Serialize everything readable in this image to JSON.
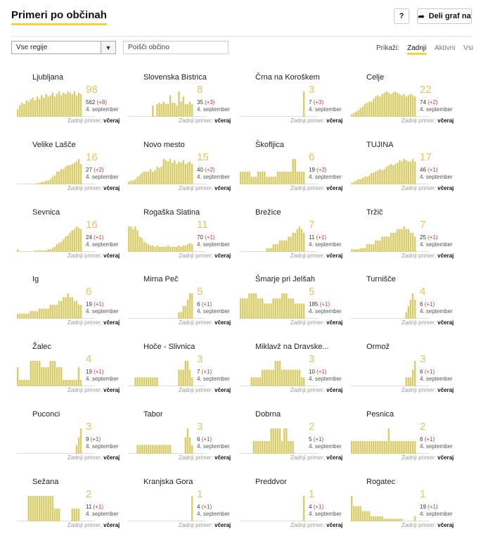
{
  "header": {
    "title": "Primeri po občinah",
    "help_label": "?",
    "share_label": "Deli graf na"
  },
  "filters": {
    "region_select": "Vse regije",
    "search_placeholder": "Poišči občino",
    "show_label": "Prikaži:",
    "options": [
      "Zadnji",
      "Aktivni",
      "Vsi"
    ],
    "selected": "Zadnji"
  },
  "colors": {
    "accent": "#f2d240",
    "bar": "#d9cc6a",
    "value": "#e2c55c",
    "delta": "#c0392b"
  },
  "municipalities": [
    {
      "name": "Ljubljana",
      "value": "98",
      "total": "562",
      "delta": "(+8)",
      "date": "4. september",
      "last_label": "Zadnji primer:",
      "last_value": "včeraj",
      "bars": [
        0.3,
        0.45,
        0.55,
        0.5,
        0.65,
        0.6,
        0.7,
        0.75,
        0.65,
        0.8,
        0.7,
        0.85,
        0.75,
        0.9,
        0.8,
        0.85,
        0.95,
        0.8,
        0.9,
        1.0,
        0.85,
        0.95,
        0.9,
        1.0,
        0.95,
        0.9,
        1.0,
        0.85,
        0.95,
        0.9
      ]
    },
    {
      "name": "Slovenska Bistrica",
      "value": "8",
      "total": "35",
      "delta": "(+3)",
      "date": "4. september",
      "last_label": "Zadnji primer:",
      "last_value": "včeraj",
      "bars": [
        0,
        0,
        0,
        0,
        0,
        0,
        0,
        0,
        0,
        0,
        0,
        0.45,
        0,
        0.5,
        0.55,
        0.5,
        0.6,
        0.5,
        0.5,
        0.85,
        0.55,
        0.55,
        0.45,
        1.0,
        0.6,
        0.8,
        0.5,
        0.5,
        0.6,
        0.5
      ]
    },
    {
      "name": "Črna na Koroškem",
      "value": "3",
      "total": "7",
      "delta": "(+3)",
      "date": "4. september",
      "last_label": "Zadnji primer:",
      "last_value": "včeraj",
      "bars": [
        0,
        0,
        0,
        0,
        0,
        0,
        0,
        0,
        0,
        0,
        0,
        0,
        0,
        0,
        0,
        0,
        0,
        0,
        0,
        0,
        0,
        0,
        0,
        0,
        0,
        0,
        0,
        0,
        0,
        1.0
      ]
    },
    {
      "name": "Celje",
      "value": "22",
      "total": "74",
      "delta": "(+2)",
      "date": "4. september",
      "last_label": "Zadnji primer:",
      "last_value": "včeraj",
      "bars": [
        0.1,
        0.15,
        0.2,
        0.25,
        0.35,
        0.4,
        0.5,
        0.55,
        0.6,
        0.6,
        0.7,
        0.8,
        0.85,
        0.8,
        0.9,
        0.95,
        1.0,
        0.95,
        0.9,
        0.95,
        1.0,
        0.95,
        0.9,
        0.85,
        0.9,
        0.8,
        0.85,
        0.9,
        0.85,
        0.8
      ]
    },
    {
      "name": "Velike Lašče",
      "value": "16",
      "total": "27",
      "delta": "(+2)",
      "date": "4. september",
      "last_label": "Zadnji primer:",
      "last_value": "včeraj",
      "bars": [
        0,
        0,
        0,
        0,
        0,
        0,
        0,
        0,
        0,
        0.05,
        0.05,
        0.1,
        0.1,
        0.15,
        0.15,
        0.2,
        0.3,
        0.35,
        0.5,
        0.5,
        0.6,
        0.6,
        0.7,
        0.75,
        0.75,
        0.8,
        0.85,
        0.9,
        1.0,
        0.8
      ]
    },
    {
      "name": "Novo mesto",
      "value": "15",
      "total": "40",
      "delta": "(+2)",
      "date": "4. september",
      "last_label": "Zadnji primer:",
      "last_value": "včeraj",
      "bars": [
        0.1,
        0.15,
        0.15,
        0.2,
        0.3,
        0.35,
        0.45,
        0.5,
        0.5,
        0.5,
        0.6,
        0.5,
        0.55,
        0.7,
        0.65,
        0.7,
        1.0,
        0.95,
        0.9,
        1.0,
        0.85,
        0.95,
        0.8,
        0.9,
        0.85,
        0.95,
        0.8,
        0.85,
        0.9,
        0.8
      ]
    },
    {
      "name": "Škofljica",
      "value": "6",
      "total": "19",
      "delta": "(+2)",
      "date": "4. september",
      "last_label": "Zadnji primer:",
      "last_value": "včeraj",
      "bars": [
        0.5,
        0.5,
        0.5,
        0.5,
        0.5,
        0.3,
        0.3,
        0.3,
        0.5,
        0.5,
        0.5,
        0.5,
        0.3,
        0.3,
        0.3,
        0.3,
        0.3,
        0.5,
        0.5,
        0.5,
        0.5,
        0.5,
        0.5,
        0.5,
        1.0,
        1.0,
        0.5,
        0.5,
        0.5,
        0.5
      ]
    },
    {
      "name": "TUJINA",
      "value": "17",
      "total": "46",
      "delta": "(+1)",
      "date": "4. september",
      "last_label": "Zadnji primer:",
      "last_value": "včeraj",
      "bars": [
        0.05,
        0.1,
        0.15,
        0.2,
        0.2,
        0.25,
        0.3,
        0.3,
        0.35,
        0.45,
        0.45,
        0.5,
        0.55,
        0.6,
        0.55,
        0.6,
        0.7,
        0.75,
        0.8,
        0.75,
        0.8,
        0.85,
        0.95,
        0.9,
        1.0,
        0.95,
        0.9,
        0.9,
        1.0,
        0.9
      ]
    },
    {
      "name": "Sevnica",
      "value": "16",
      "total": "24",
      "delta": "(+1)",
      "date": "4. september",
      "last_label": "Zadnji primer:",
      "last_value": "včeraj",
      "bars": [
        0.1,
        0,
        0,
        0,
        0,
        0,
        0,
        0,
        0.05,
        0.05,
        0.05,
        0.05,
        0.05,
        0.05,
        0.1,
        0.1,
        0.15,
        0.2,
        0.3,
        0.35,
        0.4,
        0.5,
        0.6,
        0.65,
        0.75,
        0.85,
        0.9,
        1.0,
        0.95,
        0.9
      ]
    },
    {
      "name": "Rogaška Slatina",
      "value": "11",
      "total": "70",
      "delta": "(+1)",
      "date": "4. september",
      "last_label": "Zadnji primer:",
      "last_value": "včeraj",
      "bars": [
        1.0,
        1.0,
        0.9,
        1.0,
        0.85,
        0.6,
        0.55,
        0.4,
        0.35,
        0.3,
        0.25,
        0.25,
        0.2,
        0.25,
        0.2,
        0.2,
        0.2,
        0.2,
        0.25,
        0.2,
        0.2,
        0.2,
        0.2,
        0.25,
        0.2,
        0.25,
        0.25,
        0.3,
        0.35,
        0.3
      ]
    },
    {
      "name": "Brežice",
      "value": "7",
      "total": "11",
      "delta": "(+1)",
      "date": "4. september",
      "last_label": "Zadnji primer:",
      "last_value": "včeraj",
      "bars": [
        0,
        0,
        0,
        0,
        0,
        0,
        0,
        0,
        0,
        0,
        0,
        0,
        0.15,
        0.15,
        0.15,
        0.3,
        0.3,
        0.3,
        0.45,
        0.45,
        0.45,
        0.45,
        0.6,
        0.6,
        0.75,
        0.75,
        0.9,
        1.0,
        0.9,
        0.75
      ]
    },
    {
      "name": "Tržič",
      "value": "7",
      "total": "25",
      "delta": "(+1)",
      "date": "4. september",
      "last_label": "Zadnji primer:",
      "last_value": "včeraj",
      "bars": [
        0.1,
        0.1,
        0.1,
        0.1,
        0.15,
        0.15,
        0.15,
        0.3,
        0.3,
        0.3,
        0.3,
        0.45,
        0.45,
        0.45,
        0.6,
        0.6,
        0.6,
        0.6,
        0.75,
        0.75,
        0.75,
        0.9,
        0.9,
        0.9,
        1.0,
        0.9,
        0.9,
        0.75,
        0.75,
        0.6
      ]
    },
    {
      "name": "Ig",
      "value": "6",
      "total": "19",
      "delta": "(+1)",
      "date": "4. september",
      "last_label": "Zadnji primer:",
      "last_value": "včeraj",
      "bars": [
        0.2,
        0.2,
        0.2,
        0.2,
        0.2,
        0.2,
        0.3,
        0.3,
        0.3,
        0.3,
        0.4,
        0.4,
        0.4,
        0.4,
        0.4,
        0.55,
        0.55,
        0.55,
        0.55,
        0.7,
        0.7,
        0.85,
        0.85,
        1.0,
        0.85,
        0.85,
        0.7,
        0.7,
        0.55,
        0.55
      ]
    },
    {
      "name": "Mirna Peč",
      "value": "5",
      "total": "6",
      "delta": "(+1)",
      "date": "4. september",
      "last_label": "Zadnji primer:",
      "last_value": "včeraj",
      "bars": [
        0,
        0,
        0,
        0,
        0,
        0,
        0,
        0,
        0,
        0,
        0,
        0,
        0,
        0,
        0,
        0,
        0,
        0,
        0,
        0,
        0,
        0,
        0,
        0.25,
        0.25,
        0.5,
        0.5,
        0.75,
        1.0,
        1.0
      ]
    },
    {
      "name": "Šmarje pri Jelšah",
      "value": "5",
      "total": "185",
      "delta": "(+1)",
      "date": "4. september",
      "last_label": "Zadnji primer:",
      "last_value": "včeraj",
      "bars": [
        0.8,
        0.8,
        0.8,
        0.8,
        1.0,
        1.0,
        1.0,
        1.0,
        0.8,
        0.8,
        0.8,
        0.6,
        0.6,
        0.6,
        0.6,
        0.8,
        0.8,
        0.8,
        0.8,
        1.0,
        1.0,
        1.0,
        0.8,
        0.8,
        0.8,
        0.6,
        0.6,
        0.6,
        0.6,
        0.6
      ]
    },
    {
      "name": "Turnišče",
      "value": "4",
      "total": "6",
      "delta": "(+1)",
      "date": "4. september",
      "last_label": "Zadnji primer:",
      "last_value": "včeraj",
      "bars": [
        0,
        0,
        0,
        0,
        0,
        0,
        0,
        0,
        0,
        0,
        0,
        0,
        0,
        0,
        0,
        0,
        0,
        0,
        0,
        0,
        0,
        0,
        0,
        0,
        0,
        0.25,
        0.5,
        0.75,
        1.0,
        0.75
      ]
    },
    {
      "name": "Žalec",
      "value": "4",
      "total": "19",
      "delta": "(+1)",
      "date": "4. september",
      "last_label": "Zadnji primer:",
      "last_value": "včeraj",
      "bars": [
        0.75,
        0.25,
        0.25,
        0.25,
        0.25,
        0.25,
        1.0,
        1.0,
        1.0,
        1.0,
        1.0,
        0.75,
        0.75,
        0.75,
        0.75,
        1.0,
        1.0,
        1.0,
        0.75,
        0.75,
        0.75,
        0.25,
        0.25,
        0.25,
        0.25,
        0.25,
        0.25,
        0.25,
        0.75,
        0.25
      ]
    },
    {
      "name": "Hoče - Slivnica",
      "value": "3",
      "total": "7",
      "delta": "(+1)",
      "date": "4. september",
      "last_label": "Zadnji primer:",
      "last_value": "včeraj",
      "bars": [
        0,
        0,
        0,
        0.35,
        0.35,
        0.35,
        0.35,
        0.35,
        0.35,
        0.35,
        0.35,
        0.35,
        0.35,
        0.35,
        0,
        0,
        0,
        0,
        0,
        0,
        0,
        0,
        0,
        0.65,
        0.65,
        0.65,
        1.0,
        1.0,
        0.65,
        0.35
      ]
    },
    {
      "name": "Miklavž na Dravske...",
      "value": "3",
      "total": "10",
      "delta": "(+1)",
      "date": "4. september",
      "last_label": "Zadnji primer:",
      "last_value": "včeraj",
      "bars": [
        0,
        0,
        0,
        0,
        0,
        0.35,
        0.35,
        0.35,
        0.35,
        0.35,
        0.65,
        0.65,
        0.65,
        0.65,
        0.65,
        0.65,
        1.0,
        1.0,
        1.0,
        0.65,
        0.65,
        0.65,
        0.65,
        0.65,
        0.65,
        0.65,
        0.65,
        0.65,
        0.35,
        0.35
      ]
    },
    {
      "name": "Ormož",
      "value": "3",
      "total": "6",
      "delta": "(+1)",
      "date": "4. september",
      "last_label": "Zadnji primer:",
      "last_value": "včeraj",
      "bars": [
        0,
        0,
        0,
        0,
        0,
        0,
        0,
        0,
        0,
        0,
        0,
        0,
        0,
        0,
        0,
        0,
        0,
        0,
        0,
        0,
        0,
        0,
        0,
        0,
        0,
        0.35,
        0.35,
        0.35,
        0.65,
        1.0
      ]
    },
    {
      "name": "Puconci",
      "value": "3",
      "total": "9",
      "delta": "(+1)",
      "date": "4. september",
      "last_label": "Zadnji primer:",
      "last_value": "včeraj",
      "bars": [
        0,
        0,
        0,
        0,
        0,
        0,
        0,
        0,
        0,
        0,
        0,
        0,
        0,
        0,
        0,
        0,
        0,
        0,
        0,
        0,
        0,
        0,
        0,
        0,
        0,
        0,
        0,
        0.35,
        0.65,
        1.0
      ]
    },
    {
      "name": "Tabor",
      "value": "3",
      "total": "6",
      "delta": "(+1)",
      "date": "4. september",
      "last_label": "Zadnji primer:",
      "last_value": "včeraj",
      "bars": [
        0,
        0,
        0,
        0,
        0.35,
        0.35,
        0.35,
        0.35,
        0.35,
        0.35,
        0.35,
        0.35,
        0.35,
        0.35,
        0.35,
        0.35,
        0.35,
        0.35,
        0.35,
        0.35,
        0,
        0,
        0,
        0,
        0,
        0,
        0.65,
        1.0,
        0.65,
        0.35
      ]
    },
    {
      "name": "Dobrna",
      "value": "2",
      "total": "5",
      "delta": "(+1)",
      "date": "4. september",
      "last_label": "Zadnji primer:",
      "last_value": "včeraj",
      "bars": [
        0,
        0,
        0,
        0,
        0,
        0,
        0.5,
        0.5,
        0.5,
        0.5,
        0.5,
        0.5,
        0.5,
        0.5,
        1.0,
        1.0,
        1.0,
        1.0,
        1.0,
        0.5,
        1.0,
        1.0,
        0.5,
        0.5,
        0.5,
        0,
        0,
        0,
        0,
        0
      ]
    },
    {
      "name": "Pesnica",
      "value": "2",
      "total": "6",
      "delta": "(+1)",
      "date": "4. september",
      "last_label": "Zadnji primer:",
      "last_value": "včeraj",
      "bars": [
        0.5,
        0.5,
        0.5,
        0.5,
        0.5,
        0.5,
        0.5,
        0.5,
        0.5,
        0.5,
        0.5,
        0.5,
        0.5,
        0.5,
        0.5,
        0.5,
        0.5,
        1.0,
        0.5,
        0.5,
        0.5,
        0.5,
        0.5,
        0.5,
        0.5,
        0.5,
        0.5,
        0.5,
        0.5,
        0.5
      ]
    },
    {
      "name": "Sežana",
      "value": "2",
      "total": "11",
      "delta": "(+1)",
      "date": "4. september",
      "last_label": "Zadnji primer:",
      "last_value": "včeraj",
      "bars": [
        0,
        0,
        0,
        0,
        0,
        1.0,
        1.0,
        1.0,
        1.0,
        1.0,
        1.0,
        1.0,
        1.0,
        1.0,
        1.0,
        1.0,
        1.0,
        0.5,
        0.5,
        0.5,
        0,
        0,
        0,
        0,
        0,
        0.5,
        0.5,
        0.5,
        0.5,
        0
      ]
    },
    {
      "name": "Kranjska Gora",
      "value": "1",
      "total": "4",
      "delta": "(+1)",
      "date": "4. september",
      "last_label": "Zadnji primer:",
      "last_value": "včeraj",
      "bars": [
        0,
        0,
        0,
        0,
        0,
        0,
        0,
        0,
        0,
        0,
        0,
        0,
        0,
        0,
        0,
        0,
        0,
        0,
        0,
        0,
        0,
        0,
        0,
        0,
        0,
        0,
        0,
        0,
        0,
        1.0
      ]
    },
    {
      "name": "Preddvor",
      "value": "1",
      "total": "4",
      "delta": "(+1)",
      "date": "4. september",
      "last_label": "Zadnji primer:",
      "last_value": "včeraj",
      "bars": [
        0,
        0,
        0,
        0,
        0,
        0,
        0,
        0,
        0,
        0,
        0,
        0,
        0,
        0,
        0,
        0,
        0,
        0,
        0,
        0,
        0,
        0,
        0,
        0,
        0,
        0,
        0,
        0,
        0,
        1.0
      ]
    },
    {
      "name": "Rogatec",
      "value": "1",
      "total": "19",
      "delta": "(+1)",
      "date": "4. september",
      "last_label": "Zadnji primer:",
      "last_value": "včeraj",
      "bars": [
        1.0,
        0.6,
        0.6,
        0.6,
        0.6,
        0.4,
        0.4,
        0.4,
        0.4,
        0.2,
        0.2,
        0.2,
        0.2,
        0.2,
        0.2,
        0.1,
        0.1,
        0.1,
        0.1,
        0.1,
        0.1,
        0.1,
        0.1,
        0.1,
        0,
        0,
        0,
        0,
        0,
        0.2
      ]
    }
  ]
}
